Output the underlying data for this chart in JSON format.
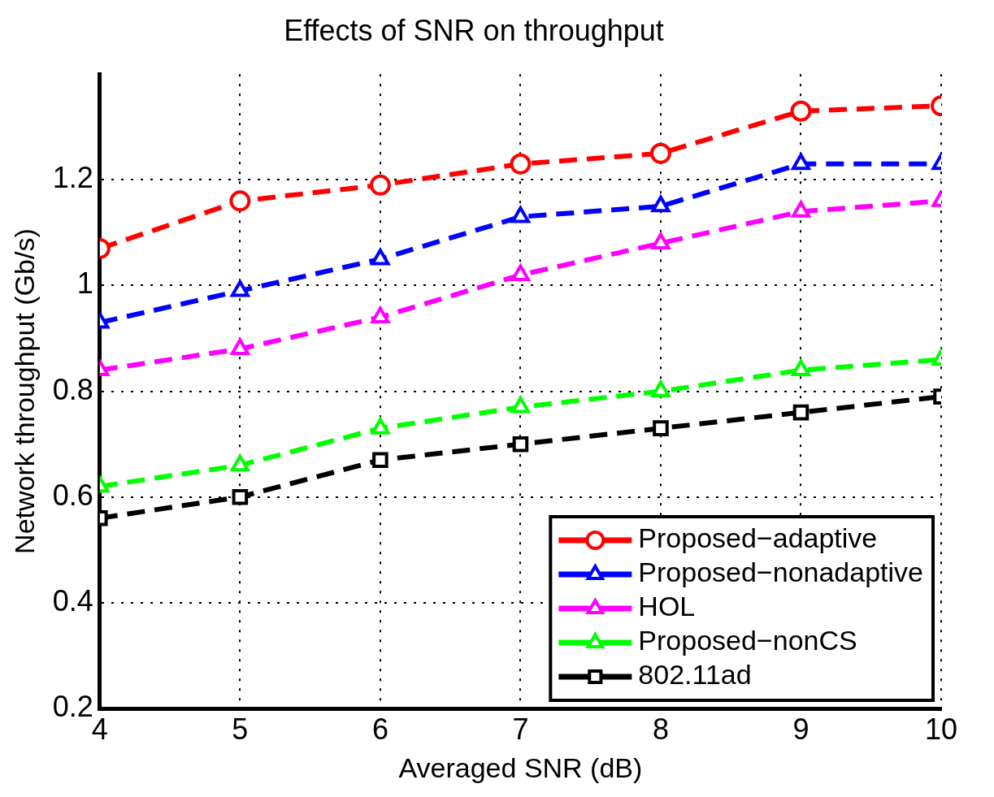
{
  "chart_data": {
    "type": "line",
    "title": "Effects of SNR on throughput",
    "xlabel": "Averaged SNR (dB)",
    "ylabel": "Network throughput (Gb/s)",
    "x": [
      4,
      5,
      6,
      7,
      8,
      9,
      10
    ],
    "xlim": [
      4,
      10
    ],
    "xticks": [
      4,
      5,
      6,
      7,
      8,
      9,
      10
    ],
    "ylim": [
      0.2,
      1.4
    ],
    "yticks": [
      0.2,
      0.4,
      0.6,
      0.8,
      1,
      1.2
    ],
    "grid": true,
    "legend": "bottom right",
    "line_style": "dashed",
    "series": [
      {
        "name": "Proposed−adaptive",
        "color": "#ff0000",
        "marker": "circle",
        "values": [
          1.07,
          1.16,
          1.19,
          1.23,
          1.25,
          1.33,
          1.34
        ]
      },
      {
        "name": "Proposed−nonadaptive",
        "color": "#0000ff",
        "marker": "triangle",
        "values": [
          0.93,
          0.99,
          1.05,
          1.13,
          1.15,
          1.23,
          1.23
        ]
      },
      {
        "name": "HOL",
        "color": "#ff00ff",
        "marker": "triangle",
        "values": [
          0.84,
          0.88,
          0.94,
          1.02,
          1.08,
          1.14,
          1.16
        ]
      },
      {
        "name": "Proposed−nonCS",
        "color": "#00ff00",
        "marker": "triangle",
        "values": [
          0.62,
          0.66,
          0.73,
          0.77,
          0.8,
          0.84,
          0.86
        ]
      },
      {
        "name": "802.11ad",
        "color": "#000000",
        "marker": "square",
        "values": [
          0.56,
          0.6,
          0.67,
          0.7,
          0.73,
          0.76,
          0.79
        ]
      }
    ]
  }
}
